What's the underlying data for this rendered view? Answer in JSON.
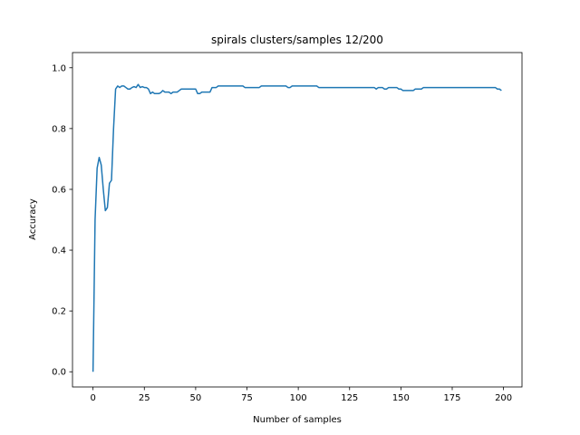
{
  "chart_data": {
    "type": "line",
    "title": "spirals clusters/samples 12/200",
    "xlabel": "Number of samples",
    "ylabel": "Accuracy",
    "xlim": [
      -10,
      209
    ],
    "ylim": [
      -0.05,
      1.05
    ],
    "xticks": [
      0,
      25,
      50,
      75,
      100,
      125,
      150,
      175,
      200
    ],
    "xtick_labels": [
      "0",
      "25",
      "50",
      "75",
      "100",
      "125",
      "150",
      "175",
      "200"
    ],
    "yticks": [
      0.0,
      0.2,
      0.4,
      0.6,
      0.8,
      1.0
    ],
    "ytick_labels": [
      "0.0",
      "0.2",
      "0.4",
      "0.6",
      "0.8",
      "1.0"
    ],
    "grid": false,
    "color": "#1f77b4",
    "series": [
      {
        "points": [
          [
            0,
            0.0
          ],
          [
            1,
            0.5
          ],
          [
            2,
            0.67
          ],
          [
            3,
            0.705
          ],
          [
            4,
            0.68
          ],
          [
            5,
            0.6
          ],
          [
            6,
            0.53
          ],
          [
            7,
            0.54
          ],
          [
            8,
            0.62
          ],
          [
            9,
            0.63
          ],
          [
            10,
            0.8
          ],
          [
            11,
            0.93
          ],
          [
            12,
            0.94
          ],
          [
            13,
            0.935
          ],
          [
            14,
            0.94
          ],
          [
            15,
            0.94
          ],
          [
            16,
            0.935
          ],
          [
            17,
            0.93
          ],
          [
            18,
            0.93
          ],
          [
            19,
            0.935
          ],
          [
            20,
            0.938
          ],
          [
            21,
            0.935
          ],
          [
            22,
            0.945
          ],
          [
            23,
            0.935
          ],
          [
            24,
            0.938
          ],
          [
            25,
            0.935
          ],
          [
            26,
            0.935
          ],
          [
            27,
            0.93
          ],
          [
            28,
            0.915
          ],
          [
            29,
            0.92
          ],
          [
            30,
            0.915
          ],
          [
            31,
            0.915
          ],
          [
            32,
            0.915
          ],
          [
            33,
            0.918
          ],
          [
            34,
            0.925
          ],
          [
            35,
            0.92
          ],
          [
            36,
            0.92
          ],
          [
            37,
            0.92
          ],
          [
            38,
            0.915
          ],
          [
            39,
            0.92
          ],
          [
            40,
            0.92
          ],
          [
            41,
            0.92
          ],
          [
            42,
            0.925
          ],
          [
            43,
            0.93
          ],
          [
            44,
            0.93
          ],
          [
            45,
            0.93
          ],
          [
            46,
            0.93
          ],
          [
            47,
            0.93
          ],
          [
            48,
            0.93
          ],
          [
            49,
            0.93
          ],
          [
            50,
            0.93
          ],
          [
            51,
            0.915
          ],
          [
            52,
            0.915
          ],
          [
            53,
            0.92
          ],
          [
            54,
            0.92
          ],
          [
            55,
            0.92
          ],
          [
            56,
            0.92
          ],
          [
            57,
            0.92
          ],
          [
            58,
            0.935
          ],
          [
            59,
            0.935
          ],
          [
            60,
            0.935
          ],
          [
            61,
            0.94
          ],
          [
            62,
            0.94
          ],
          [
            63,
            0.94
          ],
          [
            64,
            0.94
          ],
          [
            65,
            0.94
          ],
          [
            66,
            0.94
          ],
          [
            67,
            0.94
          ],
          [
            68,
            0.94
          ],
          [
            69,
            0.94
          ],
          [
            70,
            0.94
          ],
          [
            71,
            0.94
          ],
          [
            72,
            0.94
          ],
          [
            73,
            0.94
          ],
          [
            74,
            0.935
          ],
          [
            75,
            0.935
          ],
          [
            76,
            0.935
          ],
          [
            77,
            0.935
          ],
          [
            78,
            0.935
          ],
          [
            79,
            0.935
          ],
          [
            80,
            0.935
          ],
          [
            81,
            0.935
          ],
          [
            82,
            0.94
          ],
          [
            83,
            0.94
          ],
          [
            84,
            0.94
          ],
          [
            85,
            0.94
          ],
          [
            86,
            0.94
          ],
          [
            87,
            0.94
          ],
          [
            88,
            0.94
          ],
          [
            89,
            0.94
          ],
          [
            90,
            0.94
          ],
          [
            91,
            0.94
          ],
          [
            92,
            0.94
          ],
          [
            93,
            0.94
          ],
          [
            94,
            0.94
          ],
          [
            95,
            0.935
          ],
          [
            96,
            0.935
          ],
          [
            97,
            0.94
          ],
          [
            98,
            0.94
          ],
          [
            99,
            0.94
          ],
          [
            100,
            0.94
          ],
          [
            101,
            0.94
          ],
          [
            102,
            0.94
          ],
          [
            103,
            0.94
          ],
          [
            104,
            0.94
          ],
          [
            105,
            0.94
          ],
          [
            106,
            0.94
          ],
          [
            107,
            0.94
          ],
          [
            108,
            0.94
          ],
          [
            109,
            0.94
          ],
          [
            110,
            0.935
          ],
          [
            111,
            0.935
          ],
          [
            112,
            0.935
          ],
          [
            113,
            0.935
          ],
          [
            114,
            0.935
          ],
          [
            115,
            0.935
          ],
          [
            116,
            0.935
          ],
          [
            117,
            0.935
          ],
          [
            118,
            0.935
          ],
          [
            119,
            0.935
          ],
          [
            120,
            0.935
          ],
          [
            121,
            0.935
          ],
          [
            122,
            0.935
          ],
          [
            123,
            0.935
          ],
          [
            124,
            0.935
          ],
          [
            125,
            0.935
          ],
          [
            126,
            0.935
          ],
          [
            127,
            0.935
          ],
          [
            128,
            0.935
          ],
          [
            129,
            0.935
          ],
          [
            130,
            0.935
          ],
          [
            131,
            0.935
          ],
          [
            132,
            0.935
          ],
          [
            133,
            0.935
          ],
          [
            134,
            0.935
          ],
          [
            135,
            0.935
          ],
          [
            136,
            0.935
          ],
          [
            137,
            0.935
          ],
          [
            138,
            0.93
          ],
          [
            139,
            0.935
          ],
          [
            140,
            0.935
          ],
          [
            141,
            0.935
          ],
          [
            142,
            0.93
          ],
          [
            143,
            0.93
          ],
          [
            144,
            0.935
          ],
          [
            145,
            0.935
          ],
          [
            146,
            0.935
          ],
          [
            147,
            0.935
          ],
          [
            148,
            0.935
          ],
          [
            149,
            0.93
          ],
          [
            150,
            0.93
          ],
          [
            151,
            0.925
          ],
          [
            152,
            0.925
          ],
          [
            153,
            0.925
          ],
          [
            154,
            0.925
          ],
          [
            155,
            0.925
          ],
          [
            156,
            0.925
          ],
          [
            157,
            0.93
          ],
          [
            158,
            0.93
          ],
          [
            159,
            0.93
          ],
          [
            160,
            0.93
          ],
          [
            161,
            0.935
          ],
          [
            162,
            0.935
          ],
          [
            163,
            0.935
          ],
          [
            164,
            0.935
          ],
          [
            165,
            0.935
          ],
          [
            166,
            0.935
          ],
          [
            167,
            0.935
          ],
          [
            168,
            0.935
          ],
          [
            169,
            0.935
          ],
          [
            170,
            0.935
          ],
          [
            171,
            0.935
          ],
          [
            172,
            0.935
          ],
          [
            173,
            0.935
          ],
          [
            174,
            0.935
          ],
          [
            175,
            0.935
          ],
          [
            176,
            0.935
          ],
          [
            177,
            0.935
          ],
          [
            178,
            0.935
          ],
          [
            179,
            0.935
          ],
          [
            180,
            0.935
          ],
          [
            181,
            0.935
          ],
          [
            182,
            0.935
          ],
          [
            183,
            0.935
          ],
          [
            184,
            0.935
          ],
          [
            185,
            0.935
          ],
          [
            186,
            0.935
          ],
          [
            187,
            0.935
          ],
          [
            188,
            0.935
          ],
          [
            189,
            0.935
          ],
          [
            190,
            0.935
          ],
          [
            191,
            0.935
          ],
          [
            192,
            0.935
          ],
          [
            193,
            0.935
          ],
          [
            194,
            0.935
          ],
          [
            195,
            0.935
          ],
          [
            196,
            0.935
          ],
          [
            197,
            0.93
          ],
          [
            198,
            0.93
          ],
          [
            199,
            0.925
          ]
        ]
      }
    ]
  }
}
